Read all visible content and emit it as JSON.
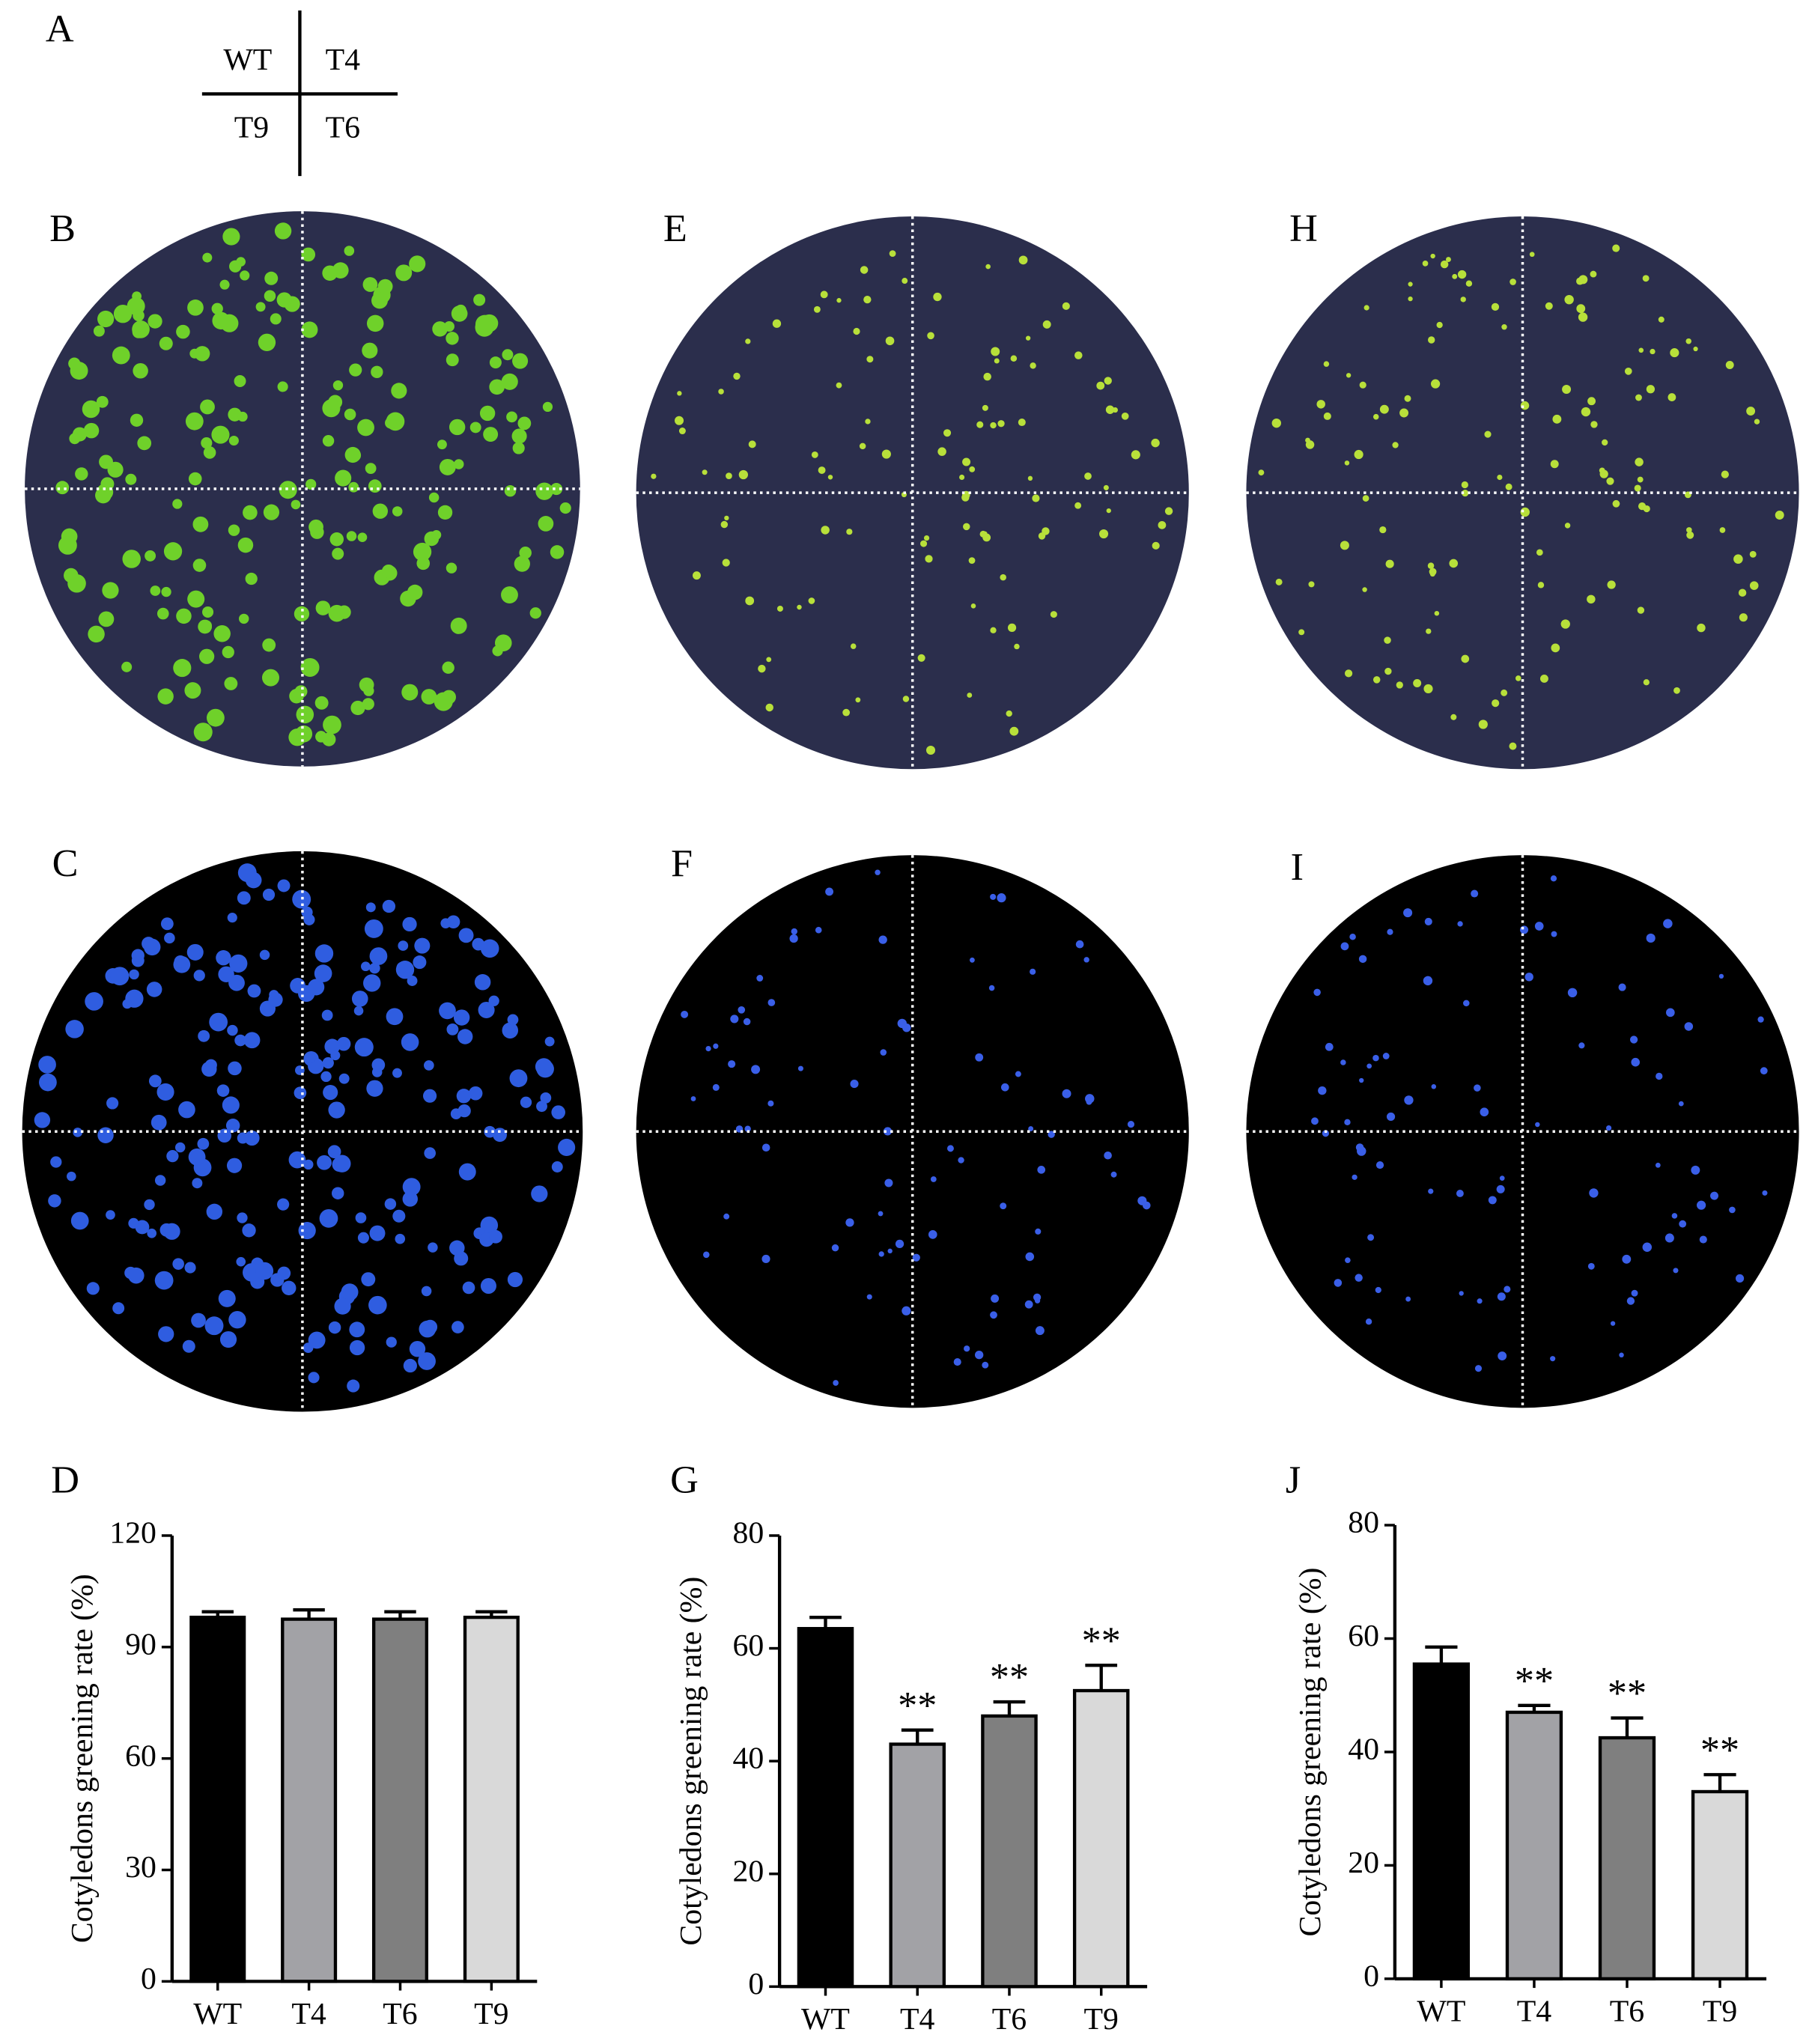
{
  "key": {
    "label": "A",
    "quadrants": [
      "WT",
      "T4",
      "T9",
      "T6"
    ]
  },
  "photo_panels": [
    {
      "label": "B"
    },
    {
      "label": "E"
    },
    {
      "label": "H"
    },
    {
      "label": "C"
    },
    {
      "label": "F"
    },
    {
      "label": "I"
    }
  ],
  "chart_data": [
    {
      "type": "bar",
      "panel_label": "D",
      "y_label": "Cotyledons greening rate (%)",
      "categories": [
        "WT",
        "T4",
        "T6",
        "T9"
      ],
      "values": [
        98,
        97.5,
        97.5,
        98
      ],
      "errors": [
        1.5,
        2.5,
        2,
        1.5
      ],
      "colors": [
        "#000000",
        "#a2a2a6",
        "#7f7f7f",
        "#d9d9d9"
      ],
      "significance": [
        null,
        null,
        null,
        null
      ],
      "ylim": [
        0,
        120
      ],
      "yticks": [
        0,
        30,
        60,
        90,
        120
      ]
    },
    {
      "type": "bar",
      "panel_label": "G",
      "y_label": "Cotyledons greening rate (%)",
      "categories": [
        "WT",
        "T4",
        "T6",
        "T9"
      ],
      "values": [
        63.5,
        43,
        48,
        52.5
      ],
      "errors": [
        2,
        2.5,
        2.5,
        4.5
      ],
      "colors": [
        "#000000",
        "#a2a2a6",
        "#7f7f7f",
        "#d9d9d9"
      ],
      "significance": [
        null,
        "**",
        "**",
        "**"
      ],
      "ylim": [
        0,
        80
      ],
      "yticks": [
        0,
        20,
        40,
        60,
        80
      ]
    },
    {
      "type": "bar",
      "panel_label": "J",
      "y_label": "Cotyledons greening rate (%)",
      "categories": [
        "WT",
        "T4",
        "T6",
        "T9"
      ],
      "values": [
        55.5,
        47,
        42.5,
        33
      ],
      "errors": [
        3,
        1.2,
        3.5,
        3
      ],
      "colors": [
        "#000000",
        "#a2a2a6",
        "#7f7f7f",
        "#d9d9d9"
      ],
      "significance": [
        null,
        "**",
        "**",
        "**"
      ],
      "ylim": [
        0,
        80
      ],
      "yticks": [
        0,
        20,
        40,
        60,
        80
      ]
    }
  ]
}
